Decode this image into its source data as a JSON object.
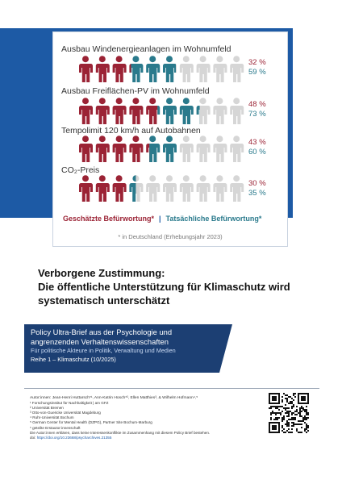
{
  "colors": {
    "estimated": "#9b2335",
    "actual": "#2a7a8c",
    "empty": "#d6d6d6",
    "accent": "#1d5aa5",
    "banner": "#1c3f73"
  },
  "chart": {
    "rows": [
      {
        "title": "Ausbau Windenergieanlagen im Wohnumfeld",
        "estimated": "32 %",
        "actual": "59 %",
        "estimated_value": 32,
        "actual_value": 59
      },
      {
        "title": "Ausbau Freiflächen-PV im Wohnumfeld",
        "estimated": "48 %",
        "actual": "73 %",
        "estimated_value": 48,
        "actual_value": 73
      },
      {
        "title": "Tempolimit 120 km/h auf Autobahnen",
        "estimated": "43 %",
        "actual": "60 %",
        "estimated_value": 43,
        "actual_value": 60
      },
      {
        "title": "CO₂-Preis",
        "estimated": "30 %",
        "actual": "35 %",
        "estimated_value": 30,
        "actual_value": 35
      }
    ],
    "legend": {
      "estimated": "Geschätzte Befürwortung*",
      "separator": "|",
      "actual": "Tatsächliche Befürwortung*"
    },
    "footnote": "* in Deutschland (Erhebungsjahr 2023)"
  },
  "headline": {
    "line1": "Verborgene Zustimmung:",
    "line2": "Die öffentliche Unterstützung für Klimaschutz wird",
    "line3": "systematisch unterschätzt"
  },
  "banner": {
    "line1": "Policy Ultra-Brief aus der Psychologie und",
    "line2": "angrenzenden Verhaltenswissenschaften",
    "subtitle": "Für politische Akteure in Politik, Verwaltung und Medien",
    "series": "Reihe 1 – Klimaschutz (10/2025)"
  },
  "authors": {
    "line": "Autor:innen: Jean-Henri Huttarsch*¹, Ann-Katrin Hosch*², Ellen Matthies³, & Wilhelm Hofmann⁴,⁵",
    "aff1": "¹ Forschungsinstitut für Nachhaltigkeit | am GFZ",
    "aff2": "² Universität Bremen",
    "aff3": "³ Otto-von-Guericke Universität Magdeburg",
    "aff4": "⁴ Ruhr-Universität Bochum",
    "aff5": "⁵ German Center for Mental Health (DZPG), Partner Site Bochum-Marburg",
    "aff6": "* geteilte Erstautor:innenschaft",
    "conflict": "Die Autor:innen erklären, dass keine Interessenkonflikte im Zusammenhang mit diesem Policy Brief bestehen.",
    "doi_prefix": "doi: ",
    "doi": "https://doi.org/10.23668/psycharchives.21355"
  }
}
